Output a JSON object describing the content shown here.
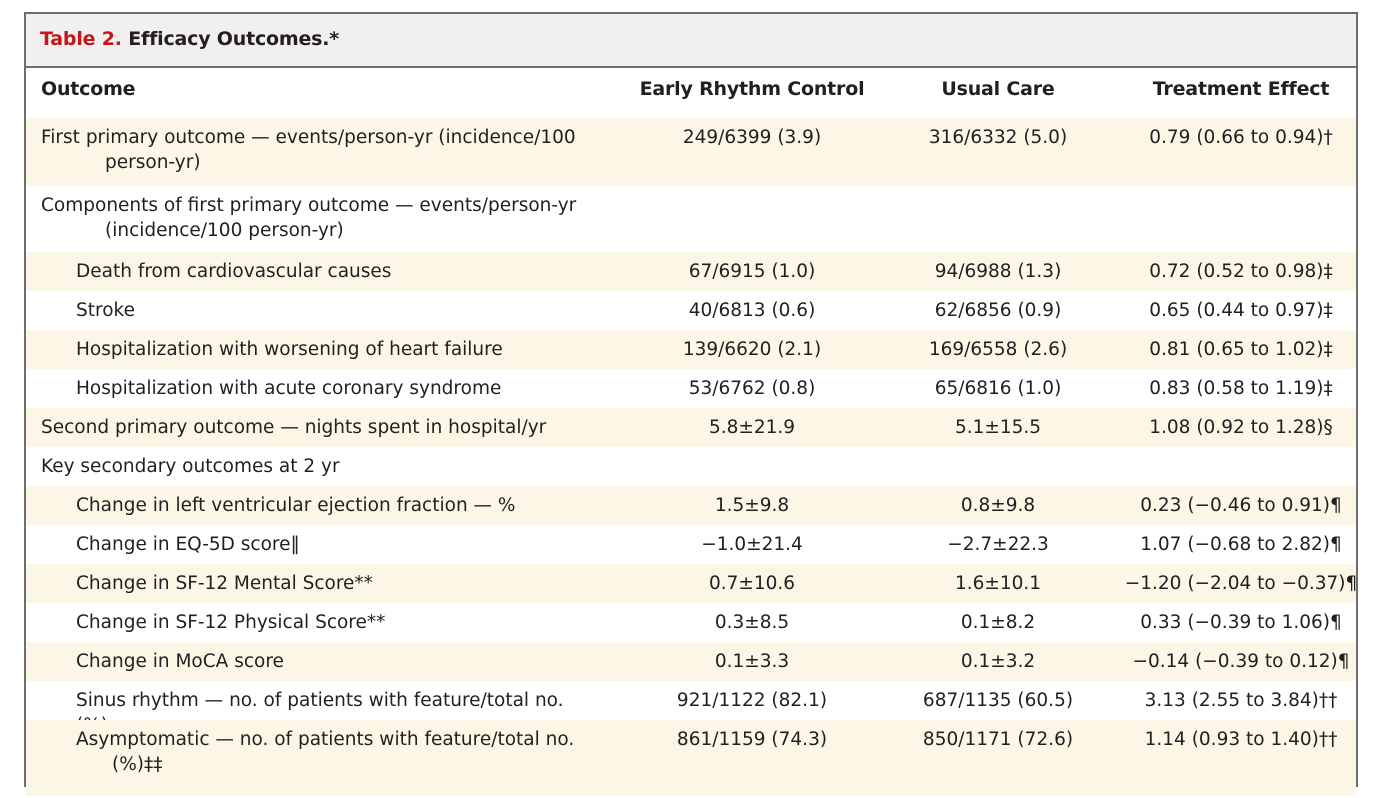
{
  "table": {
    "title_number": "Table 2.",
    "title_text": "Efficacy Outcomes.*",
    "headers": [
      "Outcome",
      "Early Rhythm Control",
      "Usual Care",
      "Treatment Effect"
    ],
    "rows": [
      {
        "outcome": "First primary outcome — events/person-yr (incidence/100",
        "outcome_cont": "person-yr)",
        "erc": "249/6399 (3.9)",
        "uc": "316/6332 (5.0)",
        "effect": "0.79 (0.66 to 0.94)†"
      },
      {
        "outcome": "Components of first primary outcome — events/person-yr",
        "outcome_cont": "(incidence/100 person-yr)",
        "erc": "",
        "uc": "",
        "effect": ""
      },
      {
        "outcome": "Death from cardiovascular causes",
        "erc": "67/6915 (1.0)",
        "uc": "94/6988 (1.3)",
        "effect": "0.72 (0.52 to 0.98)‡"
      },
      {
        "outcome": "Stroke",
        "erc": "40/6813 (0.6)",
        "uc": "62/6856 (0.9)",
        "effect": "0.65 (0.44 to 0.97)‡"
      },
      {
        "outcome": "Hospitalization with worsening of heart failure",
        "erc": "139/6620 (2.1)",
        "uc": "169/6558 (2.6)",
        "effect": "0.81 (0.65 to 1.02)‡"
      },
      {
        "outcome": "Hospitalization with acute coronary syndrome",
        "erc": "53/6762 (0.8)",
        "uc": "65/6816 (1.0)",
        "effect": "0.83 (0.58 to 1.19)‡"
      },
      {
        "outcome": "Second primary outcome — nights spent in hospital/yr",
        "erc": "5.8±21.9",
        "uc": "5.1±15.5",
        "effect": "1.08 (0.92 to 1.28)§"
      },
      {
        "outcome": "Key secondary outcomes at 2 yr",
        "erc": "",
        "uc": "",
        "effect": ""
      },
      {
        "outcome": "Change in left ventricular ejection fraction — %",
        "erc": "1.5±9.8",
        "uc": "0.8±9.8",
        "effect": "0.23 (−0.46 to 0.91)¶"
      },
      {
        "outcome": "Change in EQ-5D score‖",
        "erc": "−1.0±21.4",
        "uc": "−2.7±22.3",
        "effect": "1.07 (−0.68 to 2.82)¶"
      },
      {
        "outcome": "Change in SF-12 Mental Score**",
        "erc": "0.7±10.6",
        "uc": "1.6±10.1",
        "effect": "−1.20 (−2.04 to −0.37)¶"
      },
      {
        "outcome": "Change in SF-12 Physical Score**",
        "erc": "0.3±8.5",
        "uc": "0.1±8.2",
        "effect": "0.33 (−0.39 to 1.06)¶"
      },
      {
        "outcome": "Change in MoCA score",
        "erc": "0.1±3.3",
        "uc": "0.1±3.2",
        "effect": "−0.14 (−0.39 to 0.12)¶"
      },
      {
        "outcome": "Sinus rhythm — no. of patients with feature/total no. (%)",
        "erc": "921/1122 (82.1)",
        "uc": "687/1135 (60.5)",
        "effect": "3.13 (2.55 to 3.84)††"
      },
      {
        "outcome": "Asymptomatic — no. of patients with feature/total no.",
        "outcome_cont": "(%)‡‡",
        "erc": "861/1159 (74.3)",
        "uc": "850/1171 (72.6)",
        "effect": "1.14 (0.93 to 1.40)††"
      }
    ]
  },
  "colors": {
    "title_number": "#c4161c",
    "title_bar": "#f1f0ee",
    "row_shade": "#fbf6e5",
    "border": "#6d6e71"
  }
}
